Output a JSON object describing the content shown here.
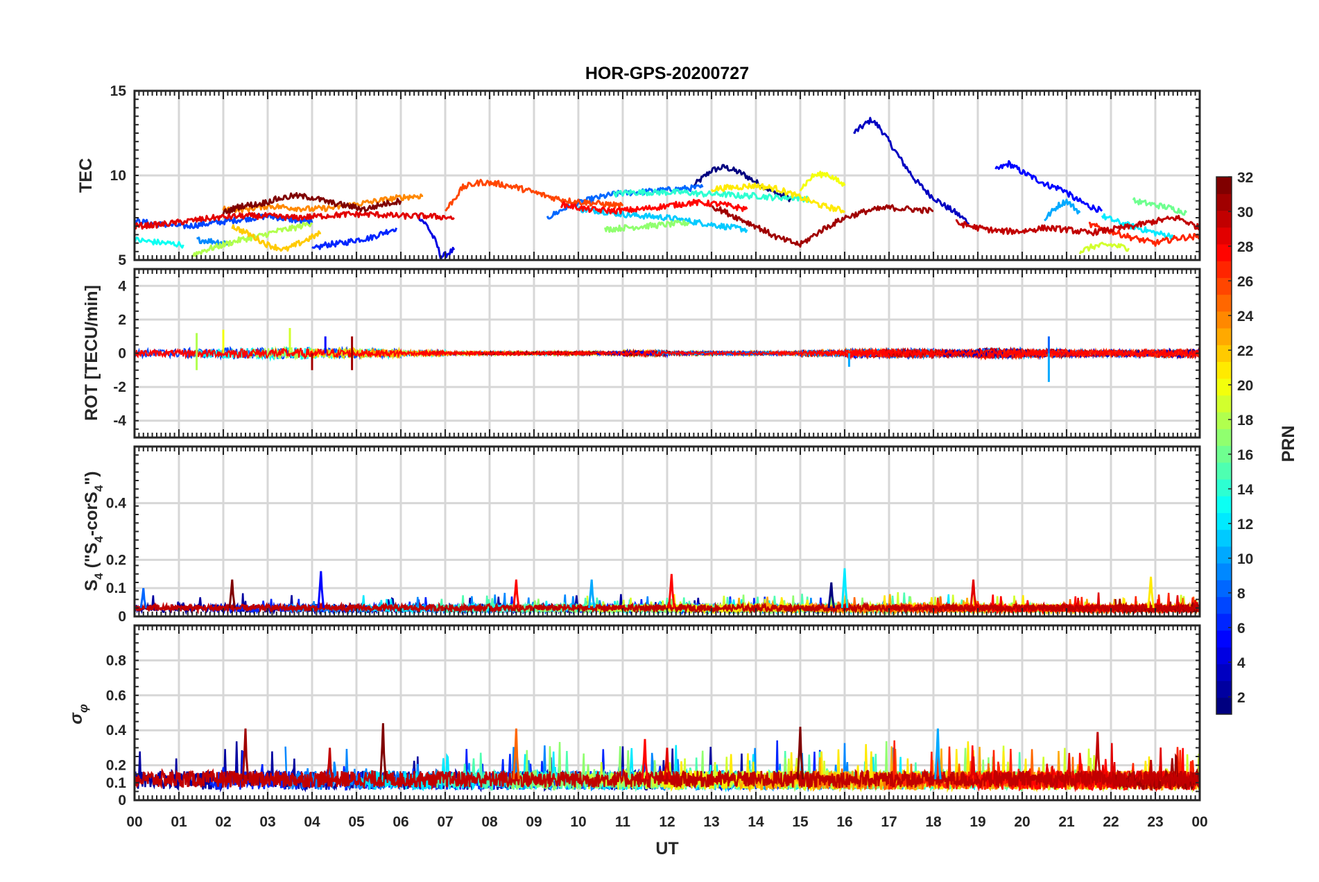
{
  "figure_title": "HOR-GPS-20200727",
  "colorbar": {
    "label": "PRN",
    "range": [
      1,
      32
    ],
    "ticks": [
      "2",
      "4",
      "6",
      "8",
      "10",
      "12",
      "14",
      "16",
      "18",
      "20",
      "22",
      "24",
      "26",
      "28",
      "30",
      "32"
    ],
    "colormap": "jet"
  },
  "chart_data": [
    {
      "type": "line",
      "panel": "tec",
      "ylabel": "TEC",
      "xlim": [
        0,
        24
      ],
      "ylim": [
        5,
        15
      ],
      "yticks": [
        "5",
        "10",
        "15"
      ],
      "grid": true,
      "series": [
        {
          "prn": 1,
          "x": [
            12.6,
            13.0,
            13.3,
            13.7,
            14.0,
            14.4,
            14.8
          ],
          "y": [
            9.4,
            10.3,
            10.5,
            10.1,
            9.6,
            9.0,
            8.6
          ]
        },
        {
          "prn": 3,
          "x": [
            16.2,
            16.4,
            16.6,
            16.8,
            17.0,
            17.3,
            17.6,
            17.9,
            18.2,
            18.5,
            18.8
          ],
          "y": [
            12.5,
            12.9,
            13.3,
            12.8,
            12.0,
            10.8,
            9.7,
            8.9,
            8.3,
            7.8,
            7.2
          ]
        },
        {
          "prn": 4,
          "x": [
            6.4,
            6.6,
            6.8,
            6.9,
            7.0,
            7.2
          ],
          "y": [
            7.6,
            7.0,
            6.0,
            5.2,
            5.3,
            5.6
          ]
        },
        {
          "prn": 5,
          "x": [
            19.4,
            19.7,
            20.0,
            20.3,
            20.6,
            20.9,
            21.2,
            21.5,
            21.8
          ],
          "y": [
            10.3,
            10.7,
            10.2,
            9.8,
            9.4,
            9.2,
            8.6,
            8.2,
            7.9
          ]
        },
        {
          "prn": 6,
          "x": [
            4.0,
            4.3,
            4.7,
            5.0,
            5.3,
            5.7,
            5.9
          ],
          "y": [
            5.6,
            5.9,
            6.0,
            6.2,
            6.3,
            6.7,
            6.9
          ]
        },
        {
          "prn": 7,
          "x": [
            0.0,
            0.6,
            1.2,
            1.8,
            2.4,
            3.0,
            3.5,
            4.0
          ],
          "y": [
            7.3,
            7.1,
            7.0,
            7.2,
            7.4,
            7.6,
            7.4,
            7.2
          ]
        },
        {
          "prn": 8,
          "x": [
            9.3,
            9.8,
            10.3,
            10.8,
            11.3,
            11.8,
            12.3,
            12.8
          ],
          "y": [
            7.5,
            8.2,
            8.6,
            8.9,
            9.0,
            9.1,
            9.2,
            9.3
          ]
        },
        {
          "prn": 9,
          "x": [
            1.4,
            1.8,
            2.2
          ],
          "y": [
            6.2,
            6.1,
            6.0
          ]
        },
        {
          "prn": 10,
          "x": [
            20.5,
            20.8,
            21.0,
            21.3
          ],
          "y": [
            7.4,
            8.2,
            8.5,
            7.8
          ]
        },
        {
          "prn": 11,
          "x": [
            10.0,
            10.5,
            11.0,
            11.5,
            12.0,
            12.5,
            13.0,
            13.5,
            13.8
          ],
          "y": [
            8.0,
            7.9,
            7.7,
            7.6,
            7.5,
            7.3,
            7.1,
            6.9,
            6.8
          ]
        },
        {
          "prn": 12,
          "x": [
            21.8,
            22.2,
            22.6,
            23.0,
            23.4
          ],
          "y": [
            7.6,
            7.2,
            6.9,
            6.6,
            6.4
          ]
        },
        {
          "prn": 13,
          "x": [
            0.0,
            0.3,
            0.7,
            1.1
          ],
          "y": [
            6.2,
            6.1,
            6.0,
            5.9
          ]
        },
        {
          "prn": 14,
          "x": [
            10.8,
            11.2,
            11.6,
            12.0,
            12.4,
            12.8,
            13.2,
            13.6,
            14.0,
            14.4,
            14.8,
            15.2
          ],
          "y": [
            8.9,
            9.0,
            9.0,
            9.0,
            9.0,
            8.9,
            8.9,
            8.8,
            8.8,
            8.7,
            8.7,
            8.6
          ]
        },
        {
          "prn": 16,
          "x": [
            22.5,
            22.9,
            23.3,
            23.7
          ],
          "y": [
            8.5,
            8.3,
            8.1,
            7.8
          ]
        },
        {
          "prn": 17,
          "x": [
            10.6,
            11.0,
            11.5,
            12.0,
            12.5
          ],
          "y": [
            6.8,
            6.9,
            7.0,
            7.1,
            7.2
          ]
        },
        {
          "prn": 18,
          "x": [
            1.3,
            1.6,
            2.0,
            2.4,
            2.8,
            3.2,
            3.6,
            4.0
          ],
          "y": [
            5.3,
            5.6,
            5.9,
            6.2,
            6.4,
            6.7,
            6.9,
            7.2
          ]
        },
        {
          "prn": 19,
          "x": [
            21.3,
            21.6,
            22.0,
            22.4
          ],
          "y": [
            5.5,
            5.8,
            5.9,
            5.7
          ]
        },
        {
          "prn": 20,
          "x": [
            15.0,
            15.3,
            15.6,
            16.0
          ],
          "y": [
            9.2,
            10.0,
            10.1,
            9.4
          ]
        },
        {
          "prn": 21,
          "x": [
            13.0,
            13.5,
            14.0,
            14.5,
            15.0,
            15.5,
            16.0
          ],
          "y": [
            9.2,
            9.3,
            9.4,
            9.2,
            8.7,
            8.2,
            7.9
          ]
        },
        {
          "prn": 22,
          "x": [
            2.2,
            2.6,
            3.0,
            3.4,
            3.8,
            4.2
          ],
          "y": [
            7.0,
            6.5,
            5.9,
            5.6,
            6.1,
            6.6
          ]
        },
        {
          "prn": 24,
          "x": [
            2.0,
            2.5,
            3.0,
            3.5,
            4.0,
            4.5,
            5.0,
            5.5,
            6.0,
            6.5
          ],
          "y": [
            8.0,
            8.0,
            8.2,
            8.1,
            8.0,
            8.1,
            8.3,
            8.5,
            8.7,
            8.8
          ]
        },
        {
          "prn": 26,
          "x": [
            7.0,
            7.4,
            7.8,
            8.2,
            8.6,
            9.0,
            9.4,
            9.8,
            10.2,
            10.6,
            11.0
          ],
          "y": [
            7.9,
            9.3,
            9.6,
            9.5,
            9.3,
            9.0,
            8.7,
            8.5,
            8.4,
            8.3,
            8.2
          ]
        },
        {
          "prn": 27,
          "x": [
            21.5,
            22.0,
            22.5,
            23.0,
            23.5,
            24.0
          ],
          "y": [
            7.1,
            6.7,
            6.3,
            6.0,
            6.3,
            6.4
          ]
        },
        {
          "prn": 28,
          "x": [
            9.6,
            10.2,
            10.8,
            11.4,
            12.0,
            12.6,
            13.2,
            13.8
          ],
          "y": [
            8.3,
            8.0,
            7.9,
            8.0,
            8.2,
            8.4,
            8.3,
            8.0
          ]
        },
        {
          "prn": 29,
          "x": [
            0.0,
            0.6,
            1.2,
            1.8,
            2.4,
            3.0,
            3.6,
            4.2,
            4.8,
            5.4,
            6.0,
            6.6,
            7.2
          ],
          "y": [
            7.0,
            7.1,
            7.3,
            7.5,
            7.6,
            7.6,
            7.5,
            7.6,
            7.7,
            7.7,
            7.6,
            7.6,
            7.5
          ]
        },
        {
          "prn": 30,
          "x": [
            18.5,
            19.0,
            19.5,
            20.0,
            20.5,
            21.0,
            21.5,
            22.0,
            22.5,
            23.0,
            23.5,
            24.0
          ],
          "y": [
            7.2,
            6.9,
            6.7,
            6.7,
            6.9,
            6.8,
            6.6,
            6.8,
            7.0,
            7.3,
            7.5,
            6.9
          ]
        },
        {
          "prn": 31,
          "x": [
            13.0,
            13.5,
            14.0,
            14.5,
            15.0,
            15.5,
            16.0,
            16.5,
            17.0,
            17.5,
            18.0
          ],
          "y": [
            8.2,
            7.6,
            7.0,
            6.3,
            5.9,
            6.8,
            7.5,
            7.9,
            8.1,
            8.0,
            7.9
          ]
        },
        {
          "prn": 32,
          "x": [
            2.0,
            2.4,
            2.8,
            3.2,
            3.6,
            4.0,
            4.4,
            4.8,
            5.2,
            5.6,
            6.0
          ],
          "y": [
            7.8,
            8.2,
            8.3,
            8.6,
            8.8,
            8.7,
            8.4,
            8.2,
            8.0,
            8.3,
            8.5
          ]
        }
      ]
    },
    {
      "type": "line",
      "panel": "rot",
      "ylabel": "ROT [TECU/min]",
      "xlim": [
        0,
        24
      ],
      "ylim": [
        -5,
        5
      ],
      "yticks": [
        "-4",
        "-2",
        "0",
        "2",
        "4"
      ],
      "grid": true,
      "spikes": [
        {
          "prn": 18,
          "x": 1.4,
          "y": 1.2
        },
        {
          "prn": 18,
          "x": 1.4,
          "y": -1.0
        },
        {
          "prn": 20,
          "x": 2.0,
          "y": 1.4
        },
        {
          "prn": 19,
          "x": 3.5,
          "y": 1.5
        },
        {
          "prn": 31,
          "x": 4.0,
          "y": -1.0
        },
        {
          "prn": 5,
          "x": 4.3,
          "y": 1.0
        },
        {
          "prn": 31,
          "x": 4.9,
          "y": 1.0
        },
        {
          "prn": 31,
          "x": 4.9,
          "y": -1.0
        },
        {
          "prn": 10,
          "x": 16.1,
          "y": -0.8
        },
        {
          "prn": 8,
          "x": 20.6,
          "y": 1.0
        },
        {
          "prn": 10,
          "x": 20.6,
          "y": -1.7
        }
      ],
      "noise_amplitude": [
        0.5,
        0.6,
        0.7,
        0.7,
        0.6,
        0.5,
        0.3,
        0.2,
        0.2,
        0.2,
        0.2,
        0.3,
        0.2,
        0.2,
        0.2,
        0.3,
        0.5,
        0.5,
        0.4,
        0.6,
        0.5,
        0.4,
        0.4,
        0.5
      ]
    },
    {
      "type": "line",
      "panel": "s4",
      "ylabel": "S4 (\"S4-corS4\")",
      "xlim": [
        0,
        24
      ],
      "ylim": [
        0,
        0.6
      ],
      "yticks": [
        "0",
        "0.1",
        "0.2",
        "0.4"
      ],
      "grid": true,
      "peaks": [
        {
          "prn": 8,
          "x": 0.2,
          "y": 0.1
        },
        {
          "prn": 32,
          "x": 2.2,
          "y": 0.13
        },
        {
          "prn": 5,
          "x": 4.2,
          "y": 0.16
        },
        {
          "prn": 28,
          "x": 8.6,
          "y": 0.13
        },
        {
          "prn": 10,
          "x": 10.3,
          "y": 0.13
        },
        {
          "prn": 28,
          "x": 12.1,
          "y": 0.15
        },
        {
          "prn": 1,
          "x": 15.7,
          "y": 0.12
        },
        {
          "prn": 12,
          "x": 16.0,
          "y": 0.17
        },
        {
          "prn": 29,
          "x": 18.9,
          "y": 0.13
        },
        {
          "prn": 21,
          "x": 22.9,
          "y": 0.14
        }
      ],
      "baseline": 0.03
    },
    {
      "type": "line",
      "panel": "sigma_phi",
      "ylabel": "σ φ",
      "xlabel": "UT",
      "xlim": [
        0,
        24
      ],
      "ylim": [
        0,
        1
      ],
      "yticks": [
        "0",
        "0.1",
        "0.2",
        "0.4",
        "0.6",
        "0.8"
      ],
      "xticks": [
        "00",
        "01",
        "02",
        "03",
        "04",
        "05",
        "06",
        "07",
        "08",
        "09",
        "10",
        "11",
        "12",
        "13",
        "14",
        "15",
        "16",
        "17",
        "18",
        "19",
        "20",
        "21",
        "22",
        "23",
        "00"
      ],
      "grid": true,
      "peaks": [
        {
          "prn": 31,
          "x": 2.5,
          "y": 0.41
        },
        {
          "prn": 30,
          "x": 4.4,
          "y": 0.3
        },
        {
          "prn": 32,
          "x": 5.6,
          "y": 0.44
        },
        {
          "prn": 25,
          "x": 8.6,
          "y": 0.41
        },
        {
          "prn": 28,
          "x": 11.5,
          "y": 0.35
        },
        {
          "prn": 29,
          "x": 12.0,
          "y": 0.3
        },
        {
          "prn": 32,
          "x": 15.0,
          "y": 0.42
        },
        {
          "prn": 10,
          "x": 18.1,
          "y": 0.41
        },
        {
          "prn": 29,
          "x": 18.9,
          "y": 0.25
        },
        {
          "prn": 30,
          "x": 21.7,
          "y": 0.39
        },
        {
          "prn": 30,
          "x": 22.9,
          "y": 0.23
        }
      ],
      "baseline": 0.12
    }
  ]
}
